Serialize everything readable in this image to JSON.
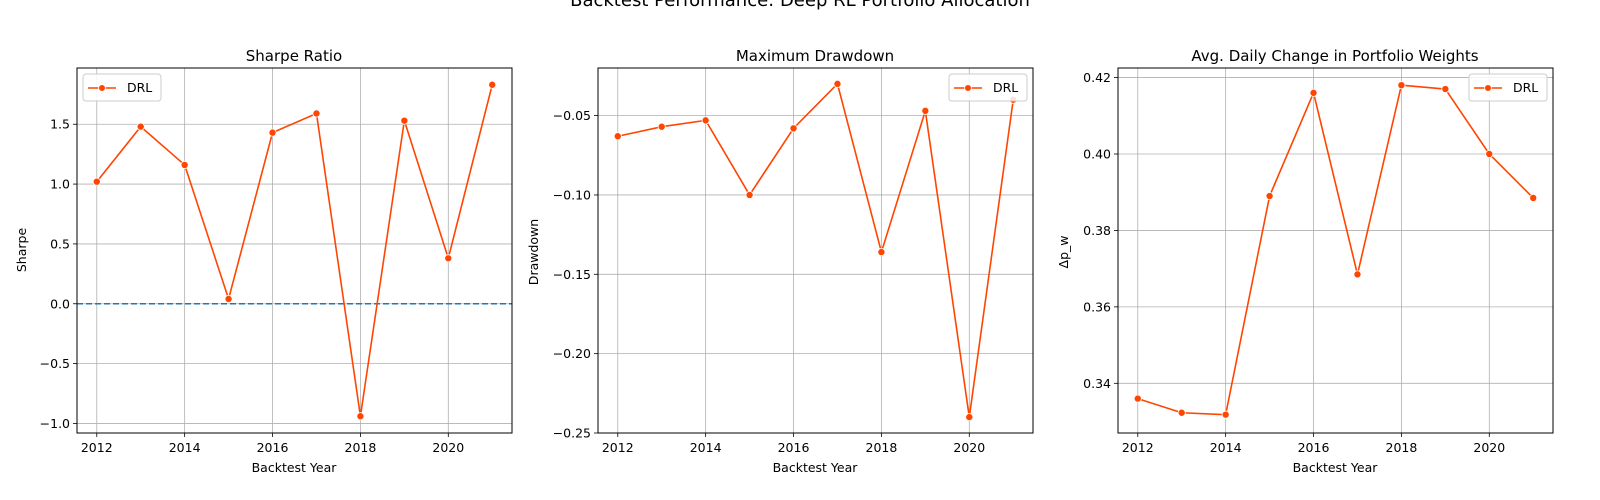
{
  "figure": {
    "suptitle": "Backtest Performance: Deep RL Portfolio Allocation"
  },
  "colors": {
    "series": "#ff4500",
    "zero_line": "#1f77b4",
    "grid": "#b0b0b0",
    "legend_border": "#cccccc"
  },
  "chart_data": [
    {
      "type": "line",
      "title": "Sharpe Ratio",
      "xlabel": "Backtest Year",
      "ylabel": "Sharpe",
      "x": [
        2012,
        2013,
        2014,
        2015,
        2016,
        2017,
        2018,
        2019,
        2020,
        2021
      ],
      "series": [
        {
          "name": "DRL",
          "values": [
            1.02,
            1.48,
            1.16,
            0.04,
            1.43,
            1.59,
            -0.94,
            1.53,
            0.38,
            1.83
          ]
        }
      ],
      "xlim": [
        2011.55,
        2021.45
      ],
      "ylim": [
        -1.08,
        1.97
      ],
      "xticks": [
        2012,
        2014,
        2016,
        2018,
        2020
      ],
      "yticks": [
        -1.0,
        -0.5,
        0.0,
        0.5,
        1.0,
        1.5
      ],
      "ytick_labels": [
        "−1.0",
        "−0.5",
        "0.0",
        "0.5",
        "1.0",
        "1.5"
      ],
      "reference_line": {
        "y": 0,
        "style": "dashed"
      },
      "grid": true,
      "legend": "upper left"
    },
    {
      "type": "line",
      "title": "Maximum Drawdown",
      "xlabel": "Backtest Year",
      "ylabel": "Drawdown",
      "x": [
        2012,
        2013,
        2014,
        2015,
        2016,
        2017,
        2018,
        2019,
        2020,
        2021
      ],
      "series": [
        {
          "name": "DRL",
          "values": [
            -0.063,
            -0.057,
            -0.053,
            -0.1,
            -0.058,
            -0.03,
            -0.136,
            -0.047,
            -0.24,
            -0.04
          ]
        }
      ],
      "xlim": [
        2011.55,
        2021.45
      ],
      "ylim": [
        -0.25,
        -0.02
      ],
      "xticks": [
        2012,
        2014,
        2016,
        2018,
        2020
      ],
      "yticks": [
        -0.25,
        -0.2,
        -0.15,
        -0.1,
        -0.05
      ],
      "ytick_labels": [
        "−0.25",
        "−0.20",
        "−0.15",
        "−0.10",
        "−0.05"
      ],
      "grid": true,
      "legend": "upper right"
    },
    {
      "type": "line",
      "title": "Avg. Daily Change in Portfolio Weights",
      "xlabel": "Backtest Year",
      "ylabel": "Δp_w",
      "x": [
        2012,
        2013,
        2014,
        2015,
        2016,
        2017,
        2018,
        2019,
        2020,
        2021
      ],
      "series": [
        {
          "name": "DRL",
          "values": [
            0.336,
            0.3323,
            0.3318,
            0.389,
            0.416,
            0.3685,
            0.418,
            0.417,
            0.4,
            0.3885
          ]
        }
      ],
      "xlim": [
        2011.55,
        2021.45
      ],
      "ylim": [
        0.327,
        0.4225
      ],
      "xticks": [
        2012,
        2014,
        2016,
        2018,
        2020
      ],
      "yticks": [
        0.34,
        0.36,
        0.38,
        0.4,
        0.42
      ],
      "ytick_labels": [
        "0.34",
        "0.36",
        "0.38",
        "0.40",
        "0.42"
      ],
      "grid": true,
      "legend": "upper right"
    }
  ]
}
